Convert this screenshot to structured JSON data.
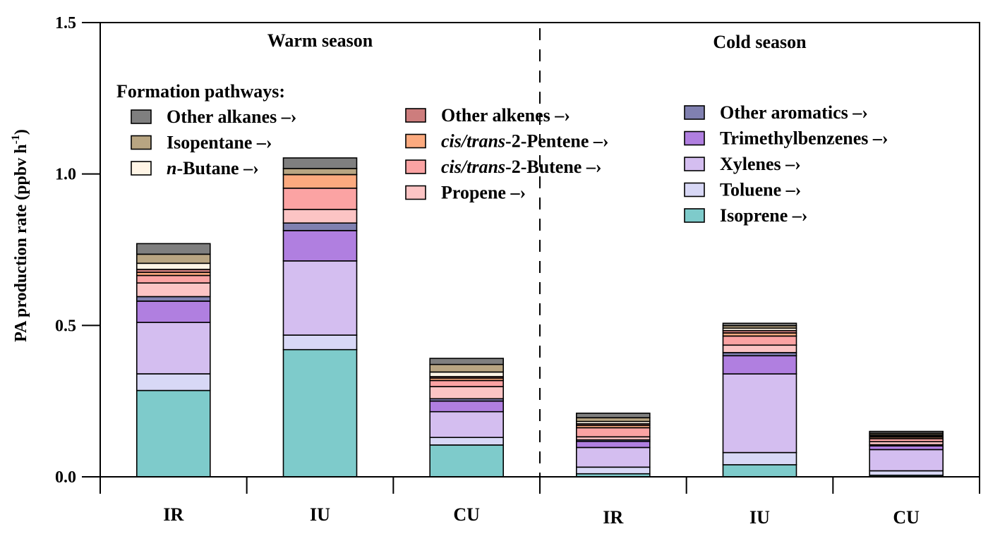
{
  "chart_data": {
    "type": "bar",
    "stacked": true,
    "ylabel": "PA production rate (ppbv h",
    "ylabel_sup": "-1",
    "ylabel_close": ")",
    "ylim": [
      0,
      1.5
    ],
    "yticks": [
      0.0,
      0.5,
      1.0,
      1.5
    ],
    "ytick_labels": [
      "0.0",
      "0.5",
      "1.0",
      "1.5"
    ],
    "categories": [
      "IR",
      "IU",
      "CU",
      "IR",
      "IU",
      "CU"
    ],
    "groups": [
      {
        "label": "Warm season",
        "categories": [
          0,
          1,
          2
        ]
      },
      {
        "label": "Cold season",
        "categories": [
          3,
          4,
          5
        ]
      }
    ],
    "legend_title": "Formation pathways:",
    "arrow": "–›",
    "series": [
      {
        "name": "Isoprene",
        "color": "#7ecbcb",
        "values": [
          0.285,
          0.42,
          0.105,
          0.01,
          0.04,
          0.005
        ]
      },
      {
        "name": "Toluene",
        "color": "#d8d8f6",
        "values": [
          0.055,
          0.048,
          0.025,
          0.022,
          0.04,
          0.015
        ]
      },
      {
        "name": "Xylenes",
        "color": "#d4bef0",
        "values": [
          0.17,
          0.245,
          0.085,
          0.065,
          0.26,
          0.07
        ]
      },
      {
        "name": "Trimethylbenzenes",
        "color": "#b07fe0",
        "values": [
          0.07,
          0.1,
          0.035,
          0.02,
          0.06,
          0.012
        ]
      },
      {
        "name": "Other aromatics",
        "color": "#8080b0",
        "values": [
          0.015,
          0.025,
          0.008,
          0.005,
          0.01,
          0.004
        ]
      },
      {
        "name": "Propene",
        "color": "#fcc4c4",
        "values": [
          0.045,
          0.045,
          0.04,
          0.01,
          0.025,
          0.01
        ]
      },
      {
        "name": "cis/trans-2-Butene",
        "color": "#fba3a3",
        "values": [
          0.025,
          0.07,
          0.02,
          0.03,
          0.03,
          0.01
        ]
      },
      {
        "name": "cis/trans-2-Pentene",
        "color": "#fcaa7f",
        "values": [
          0.01,
          0.045,
          0.008,
          0.008,
          0.01,
          0.005
        ]
      },
      {
        "name": "Other alkenes",
        "color": "#cd7d7d",
        "values": [
          0.01,
          0.0,
          0.005,
          0.005,
          0.008,
          0.004
        ]
      },
      {
        "name": "n-Butane",
        "color": "#fff5e6",
        "values": [
          0.02,
          0.0,
          0.015,
          0.008,
          0.008,
          0.004
        ]
      },
      {
        "name": "Isopentane",
        "color": "#b8a582",
        "values": [
          0.03,
          0.02,
          0.025,
          0.012,
          0.008,
          0.005
        ]
      },
      {
        "name": "Other alkanes",
        "color": "#7f7f7f",
        "values": [
          0.035,
          0.035,
          0.02,
          0.015,
          0.008,
          0.006
        ]
      }
    ],
    "legend_columns": [
      [
        {
          "series": "Other alkanes",
          "prefix": "",
          "italic": "",
          "suffix": "Other alkanes"
        },
        {
          "series": "Isopentane",
          "prefix": "",
          "italic": "",
          "suffix": "Isopentane"
        },
        {
          "series": "n-Butane",
          "prefix": "",
          "italic": "n",
          "suffix": "-Butane"
        }
      ],
      [
        {
          "series": "Other alkenes",
          "prefix": "",
          "italic": "",
          "suffix": "Other alkenes"
        },
        {
          "series": "cis/trans-2-Pentene",
          "prefix": "",
          "italic": "cis/trans",
          "suffix": "-2-Pentene"
        },
        {
          "series": "cis/trans-2-Butene",
          "prefix": "",
          "italic": "cis/trans",
          "suffix": "-2-Butene"
        },
        {
          "series": "Propene",
          "prefix": "",
          "italic": "",
          "suffix": "Propene"
        }
      ],
      [
        {
          "series": "Other aromatics",
          "prefix": "",
          "italic": "",
          "suffix": "Other aromatics"
        },
        {
          "series": "Trimethylbenzenes",
          "prefix": "",
          "italic": "",
          "suffix": "Trimethylbenzenes"
        },
        {
          "series": "Xylenes",
          "prefix": "",
          "italic": "",
          "suffix": "Xylenes"
        },
        {
          "series": "Toluene",
          "prefix": "",
          "italic": "",
          "suffix": "Toluene"
        },
        {
          "series": "Isoprene",
          "prefix": "",
          "italic": "",
          "suffix": "Isoprene"
        }
      ]
    ]
  }
}
